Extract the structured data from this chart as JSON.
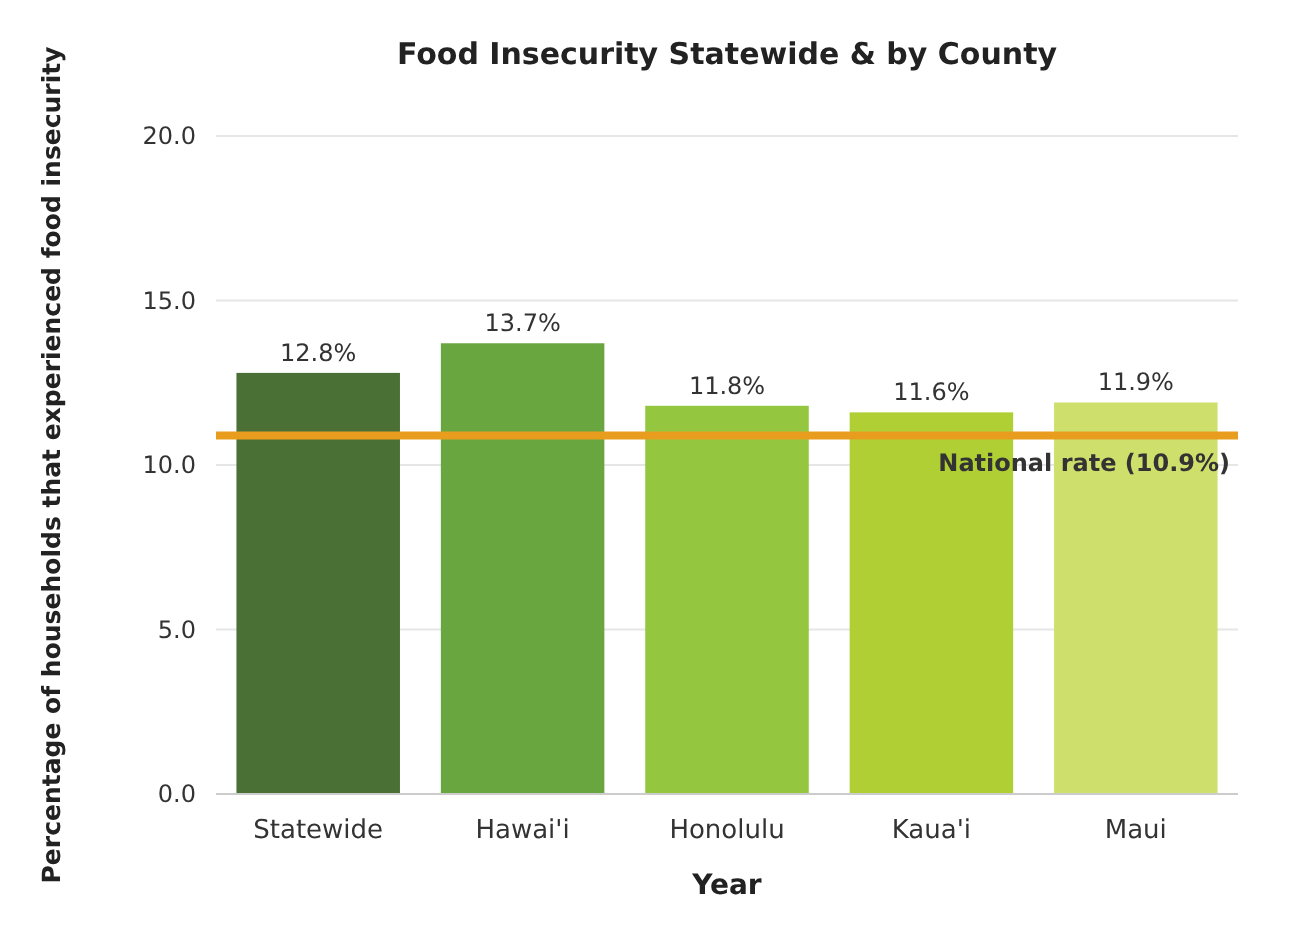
{
  "chart_data": {
    "type": "bar",
    "title": "Food Insecurity Statewide & by County",
    "xlabel": "Year",
    "ylabel": "Percentage of households that experienced food insecurity",
    "categories": [
      "Statewide",
      "Hawai'i",
      "Honolulu",
      "Kaua'i",
      "Maui"
    ],
    "values": [
      12.8,
      13.7,
      11.8,
      11.6,
      11.9
    ],
    "colors": [
      "#4a7035",
      "#6aa63f",
      "#94c640",
      "#b0cf34",
      "#cfdf6c"
    ],
    "value_labels": [
      "12.8%",
      "13.7%",
      "11.8%",
      "11.6%",
      "11.9%"
    ],
    "ylim": [
      0,
      20
    ],
    "yticks": [
      {
        "value": 0,
        "label": "0.0"
      },
      {
        "value": 5,
        "label": "5.0"
      },
      {
        "value": 10,
        "label": "10.0"
      },
      {
        "value": 15,
        "label": "15.0"
      },
      {
        "value": 20,
        "label": "20.0"
      }
    ],
    "grid": "y",
    "ref_lines": [
      {
        "axis": "y",
        "value": 10.9,
        "label": "National rate (10.9%)",
        "color": "#e89d1e"
      }
    ]
  }
}
